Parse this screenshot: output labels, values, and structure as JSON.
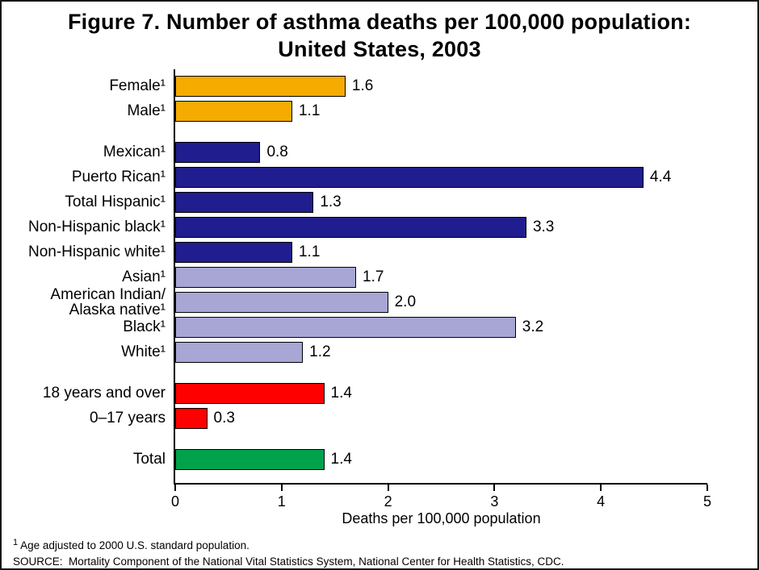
{
  "title": "Figure 7. Number of asthma deaths per 100,000 population:\nUnited States, 2003",
  "chart_data": {
    "type": "bar",
    "orientation": "horizontal",
    "title": "Figure 7. Number of asthma deaths per 100,000 population: United States, 2003",
    "xlabel": "Deaths per 100,000 population",
    "xlim": [
      0,
      5
    ],
    "xticks": [
      "0",
      "1",
      "2",
      "3",
      "4",
      "5"
    ],
    "grid": false,
    "legend": false,
    "bar_border_color": "#000000",
    "items": [
      {
        "label": "Female¹",
        "value": 1.6,
        "display": "1.6",
        "color": "#F5AB00",
        "group": "sex"
      },
      {
        "label": "Male¹",
        "value": 1.1,
        "display": "1.1",
        "color": "#F5AB00",
        "group": "sex"
      },
      {
        "label": "Mexican¹",
        "value": 0.8,
        "display": "0.8",
        "color": "#201D8E",
        "group": "race-ethnicity"
      },
      {
        "label": "Puerto Rican¹",
        "value": 4.4,
        "display": "4.4",
        "color": "#201D8E",
        "group": "race-ethnicity"
      },
      {
        "label": "Total Hispanic¹",
        "value": 1.3,
        "display": "1.3",
        "color": "#201D8E",
        "group": "race-ethnicity"
      },
      {
        "label": "Non-Hispanic black¹",
        "value": 3.3,
        "display": "3.3",
        "color": "#201D8E",
        "group": "race-ethnicity"
      },
      {
        "label": "Non-Hispanic white¹",
        "value": 1.1,
        "display": "1.1",
        "color": "#201D8E",
        "group": "race-ethnicity"
      },
      {
        "label": "Asian¹",
        "value": 1.7,
        "display": "1.7",
        "color": "#A7A6D5",
        "group": "race-ethnicity"
      },
      {
        "label": "American Indian/\nAlaska native¹",
        "value": 2.0,
        "display": "2.0",
        "color": "#A7A6D5",
        "group": "race-ethnicity"
      },
      {
        "label": "Black¹",
        "value": 3.2,
        "display": "3.2",
        "color": "#A7A6D5",
        "group": "race-ethnicity"
      },
      {
        "label": "White¹",
        "value": 1.2,
        "display": "1.2",
        "color": "#A7A6D5",
        "group": "race-ethnicity"
      },
      {
        "label": "18 years and over",
        "value": 1.4,
        "display": "1.4",
        "color": "#FF0000",
        "group": "age"
      },
      {
        "label": "0–17 years",
        "value": 0.3,
        "display": "0.3",
        "color": "#FF0000",
        "group": "age"
      },
      {
        "label": "Total",
        "value": 1.4,
        "display": "1.4",
        "color": "#00A24C",
        "group": "total"
      }
    ]
  },
  "footnotes": {
    "note_marker": "1",
    "note_text": "Age adjusted to 2000 U.S. standard population.",
    "source": "SOURCE:  Mortality Component of the National Vital Statistics System, National Center for Health Statistics, CDC."
  }
}
